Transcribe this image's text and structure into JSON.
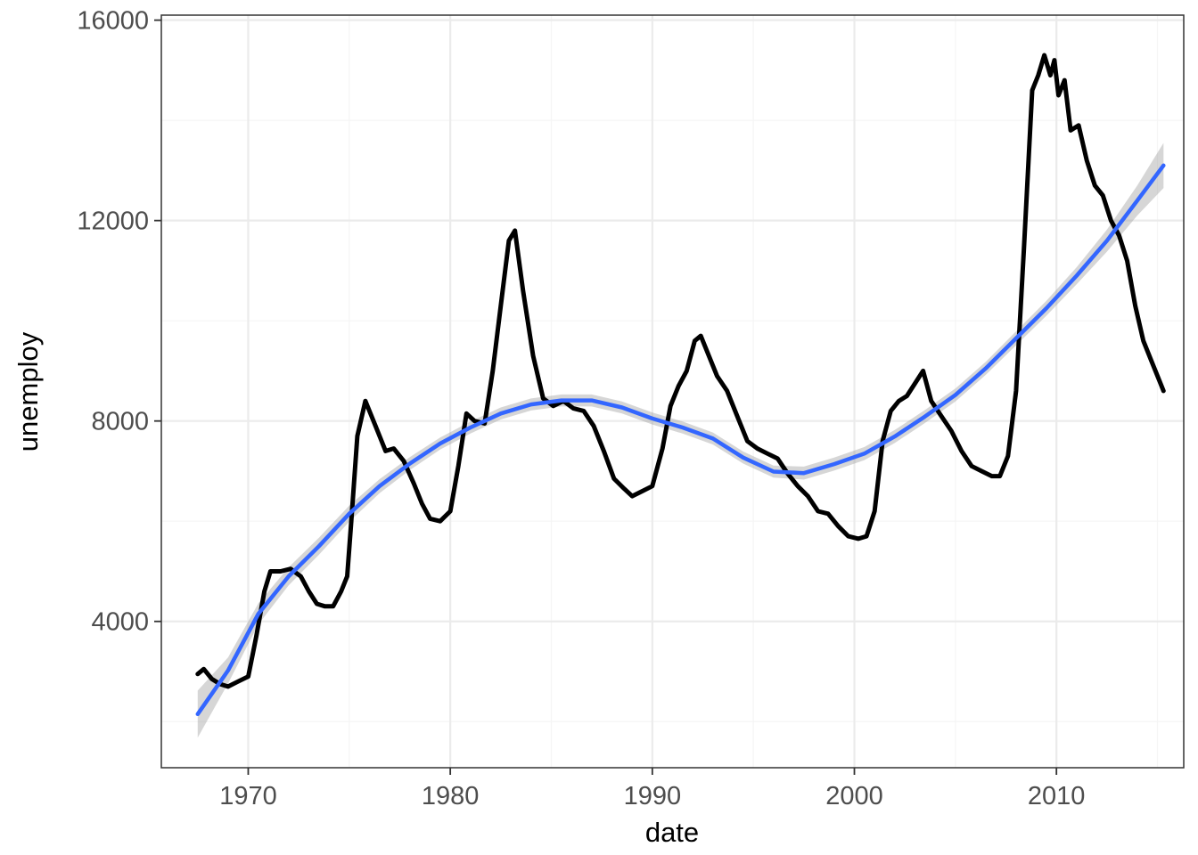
{
  "chart_data": {
    "type": "line",
    "title": "",
    "xlabel": "date",
    "ylabel": "unemploy",
    "xlim": [
      1965.7,
      2016.3
    ],
    "ylim": [
      1080,
      16100
    ],
    "x_ticks": [
      1970,
      1980,
      1990,
      2000,
      2010
    ],
    "x_tick_labels": [
      "1970",
      "1980",
      "1990",
      "2000",
      "2010"
    ],
    "y_ticks": [
      4000,
      8000,
      12000,
      16000
    ],
    "y_tick_labels": [
      "4000",
      "8000",
      "12000",
      "16000"
    ],
    "x_minor_ticks": [
      1965,
      1975,
      1985,
      1995,
      2005,
      2015
    ],
    "y_minor_ticks": [
      2000,
      6000,
      10000,
      14000
    ],
    "grid": true,
    "legend": "none",
    "colors": {
      "line": "#000000",
      "smooth": "#3366FF",
      "ribbon": "#999999",
      "grid_major": "#ebebeb",
      "grid_minor": "#f5f5f5",
      "panel_border": "#333333",
      "tick_label": "#4d4d4d"
    },
    "series": [
      {
        "type": "line",
        "x": [
          1967.5,
          1967.8,
          1968.2,
          1968.6,
          1969.0,
          1969.5,
          1970.0,
          1970.4,
          1970.8,
          1971.1,
          1971.6,
          1972.1,
          1972.6,
          1973.0,
          1973.4,
          1973.8,
          1974.2,
          1974.6,
          1974.9,
          1975.1,
          1975.4,
          1975.8,
          1976.3,
          1976.8,
          1977.2,
          1977.7,
          1978.2,
          1978.6,
          1979.0,
          1979.5,
          1980.0,
          1980.4,
          1980.8,
          1981.2,
          1981.7,
          1982.1,
          1982.5,
          1982.9,
          1983.2,
          1983.6,
          1984.1,
          1984.6,
          1985.1,
          1985.6,
          1986.1,
          1986.6,
          1987.1,
          1987.6,
          1988.1,
          1988.6,
          1989.0,
          1989.5,
          1990.0,
          1990.5,
          1990.9,
          1991.3,
          1991.7,
          1992.1,
          1992.4,
          1992.7,
          1993.2,
          1993.7,
          1994.2,
          1994.7,
          1995.2,
          1995.7,
          1996.2,
          1996.7,
          1997.2,
          1997.7,
          1998.2,
          1998.7,
          1999.2,
          1999.7,
          2000.2,
          2000.6,
          2001.0,
          2001.4,
          2001.8,
          2002.2,
          2002.6,
          2003.0,
          2003.4,
          2003.8,
          2004.3,
          2004.8,
          2005.3,
          2005.8,
          2006.3,
          2006.8,
          2007.2,
          2007.6,
          2008.0,
          2008.4,
          2008.8,
          2009.1,
          2009.4,
          2009.7,
          2009.9,
          2010.1,
          2010.4,
          2010.7,
          2011.1,
          2011.5,
          2011.9,
          2012.3,
          2012.7,
          2013.1,
          2013.5,
          2013.9,
          2014.3,
          2014.7,
          2015.1,
          2015.3
        ],
        "y": [
          2950,
          3050,
          2850,
          2750,
          2700,
          2800,
          2900,
          3700,
          4600,
          5000,
          5000,
          5050,
          4900,
          4600,
          4350,
          4300,
          4300,
          4600,
          4900,
          6000,
          7700,
          8400,
          7900,
          7400,
          7450,
          7200,
          6750,
          6350,
          6050,
          6000,
          6200,
          7100,
          8150,
          8000,
          7950,
          9000,
          10300,
          11600,
          11800,
          10600,
          9300,
          8450,
          8300,
          8400,
          8250,
          8200,
          7900,
          7400,
          6850,
          6650,
          6500,
          6600,
          6700,
          7450,
          8300,
          8700,
          9000,
          9600,
          9700,
          9400,
          8900,
          8600,
          8100,
          7600,
          7450,
          7350,
          7250,
          6950,
          6700,
          6500,
          6200,
          6150,
          5900,
          5700,
          5650,
          5700,
          6200,
          7600,
          8200,
          8400,
          8500,
          8750,
          9000,
          8400,
          8100,
          7800,
          7400,
          7100,
          7000,
          6900,
          6900,
          7300,
          8600,
          11500,
          14600,
          14900,
          15300,
          14900,
          15200,
          14500,
          14800,
          13800,
          13900,
          13200,
          12700,
          12500,
          12000,
          11700,
          11200,
          10300,
          9600,
          9200,
          8800,
          8600
        ]
      },
      {
        "type": "smooth",
        "x": [
          1967.5,
          1969,
          1970.5,
          1972,
          1973.5,
          1975,
          1976.5,
          1978,
          1979.5,
          1981,
          1982.5,
          1984,
          1985.5,
          1987,
          1988.5,
          1990,
          1991.5,
          1993,
          1994.5,
          1996,
          1997.5,
          1999,
          2000.5,
          2002,
          2003.5,
          2005,
          2006.5,
          2008,
          2009.5,
          2011,
          2012.5,
          2014,
          2015.3
        ],
        "y": [
          2150,
          3020,
          4150,
          4900,
          5500,
          6150,
          6700,
          7150,
          7550,
          7870,
          8150,
          8330,
          8410,
          8410,
          8270,
          8050,
          7870,
          7650,
          7270,
          6990,
          6960,
          7140,
          7350,
          7690,
          8090,
          8520,
          9050,
          9650,
          10250,
          10900,
          11600,
          12400,
          13100
        ],
        "y_low": [
          1680,
          2760,
          3940,
          4720,
          5330,
          5990,
          6560,
          7020,
          7430,
          7750,
          8030,
          8210,
          8290,
          8290,
          8150,
          7930,
          7750,
          7530,
          7150,
          6870,
          6830,
          7010,
          7220,
          7560,
          7960,
          8390,
          8920,
          9510,
          10100,
          10730,
          11380,
          12100,
          12650
        ],
        "y_high": [
          2620,
          3280,
          4360,
          5080,
          5670,
          6310,
          6840,
          7280,
          7670,
          7990,
          8270,
          8450,
          8530,
          8530,
          8390,
          8170,
          7990,
          7770,
          7390,
          7110,
          7090,
          7270,
          7480,
          7820,
          8220,
          8650,
          9180,
          9790,
          10400,
          11070,
          11820,
          12700,
          13550
        ]
      }
    ]
  }
}
